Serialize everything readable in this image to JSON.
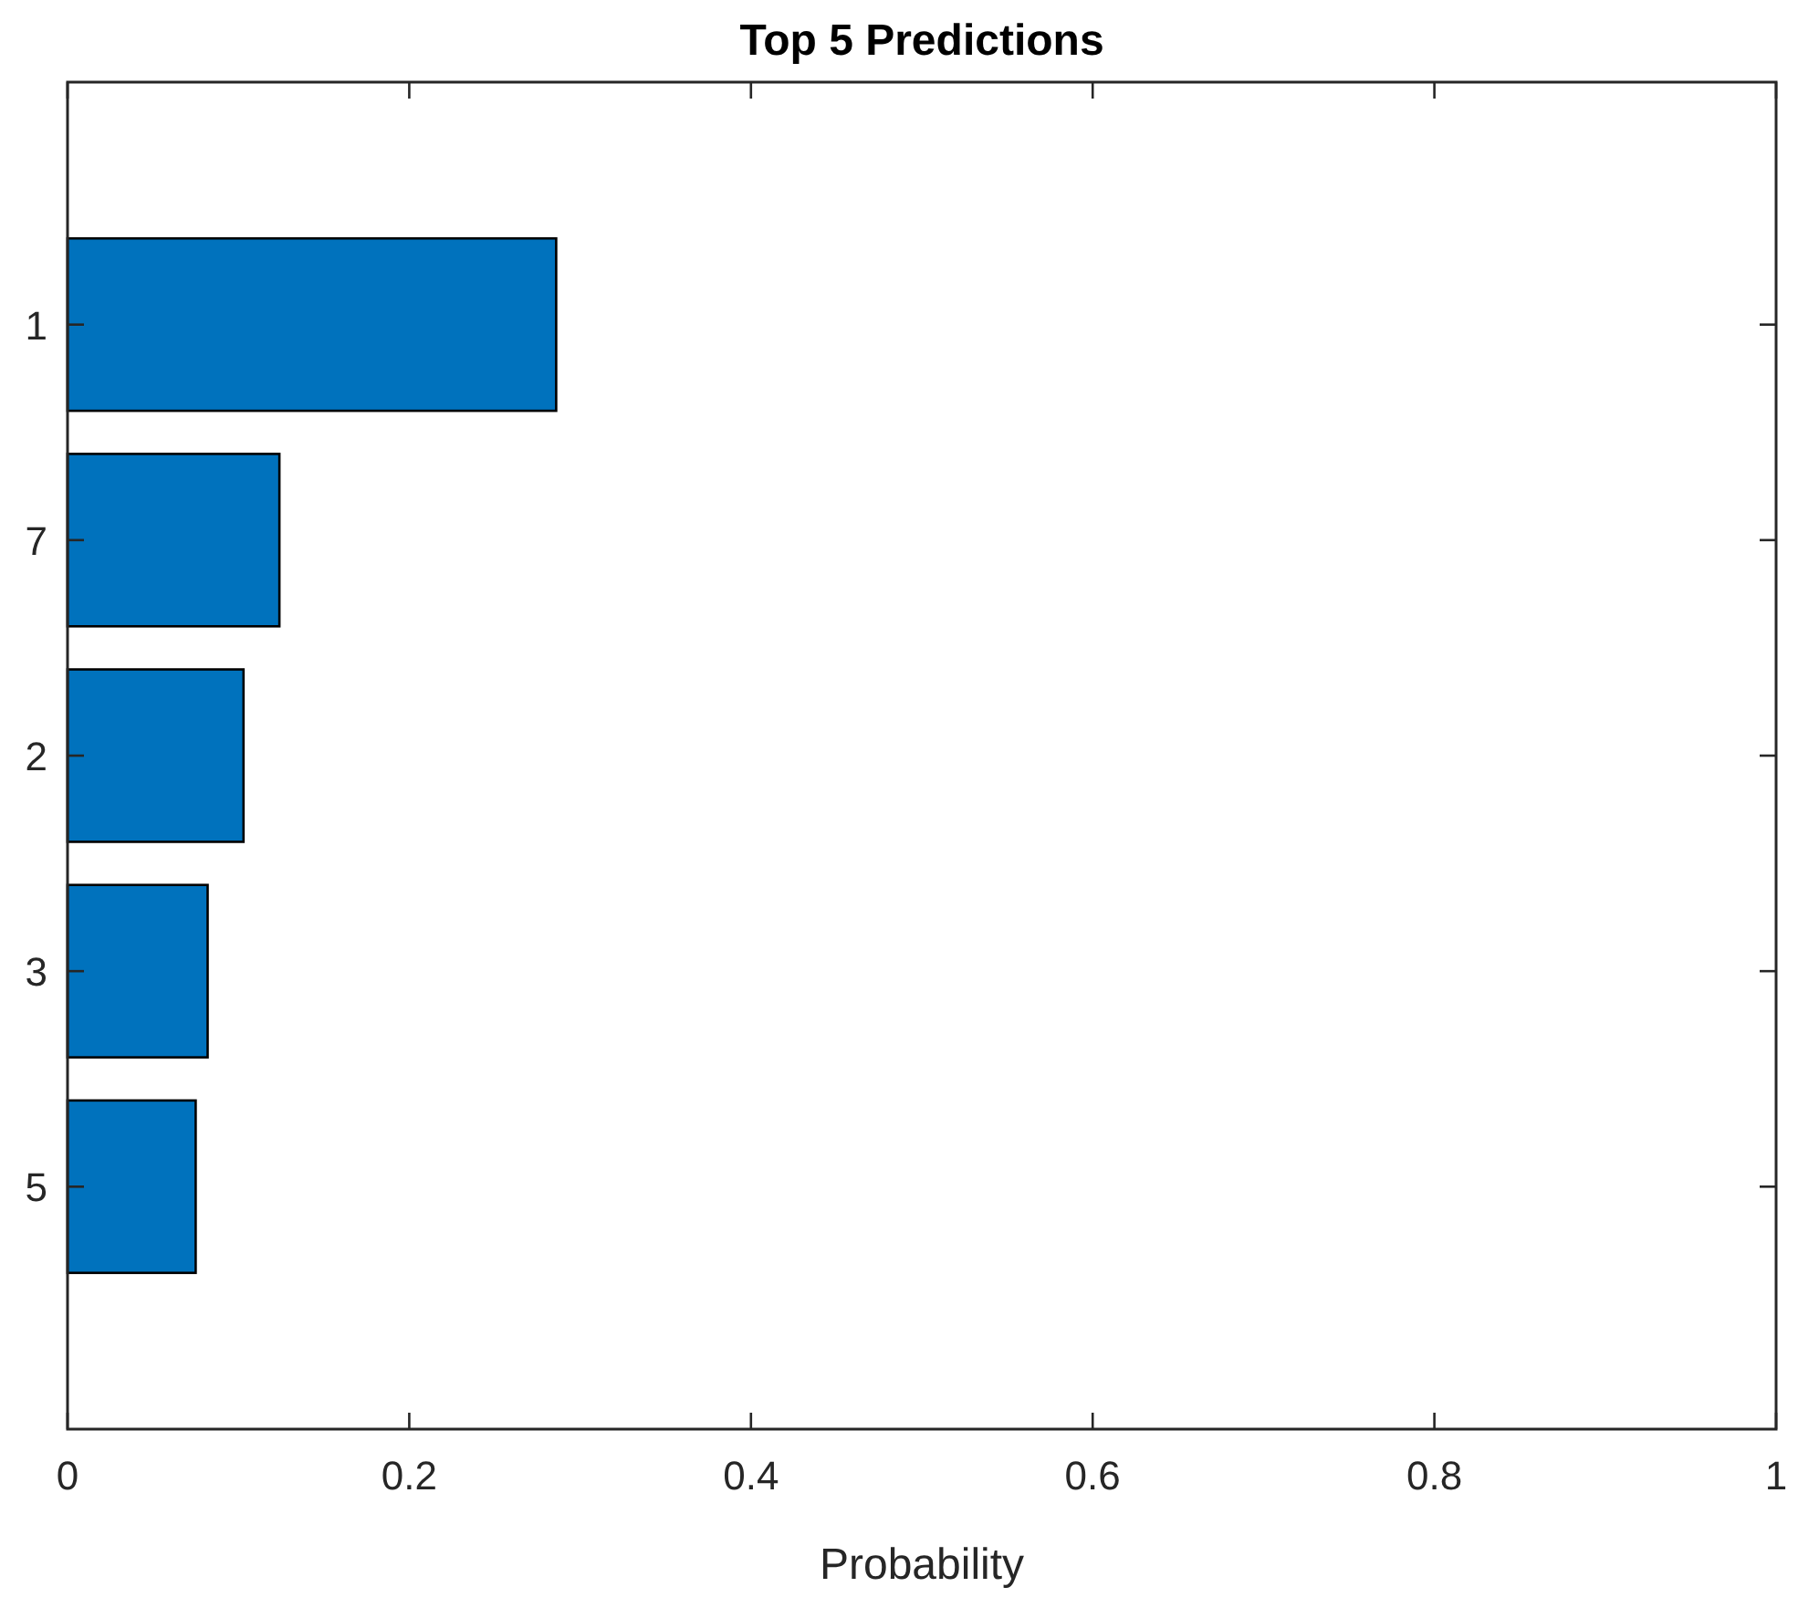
{
  "chart_data": {
    "type": "bar",
    "orientation": "horizontal",
    "title": "Top 5 Predictions",
    "xlabel": "Probability",
    "categories": [
      "1",
      "7",
      "2",
      "3",
      "5"
    ],
    "values": [
      0.286,
      0.124,
      0.103,
      0.082,
      0.075
    ],
    "color": "#0072bd",
    "xlim": [
      0,
      1
    ],
    "xticks": [
      0,
      0.2,
      0.4,
      0.6,
      0.8,
      1
    ],
    "grid": false
  }
}
